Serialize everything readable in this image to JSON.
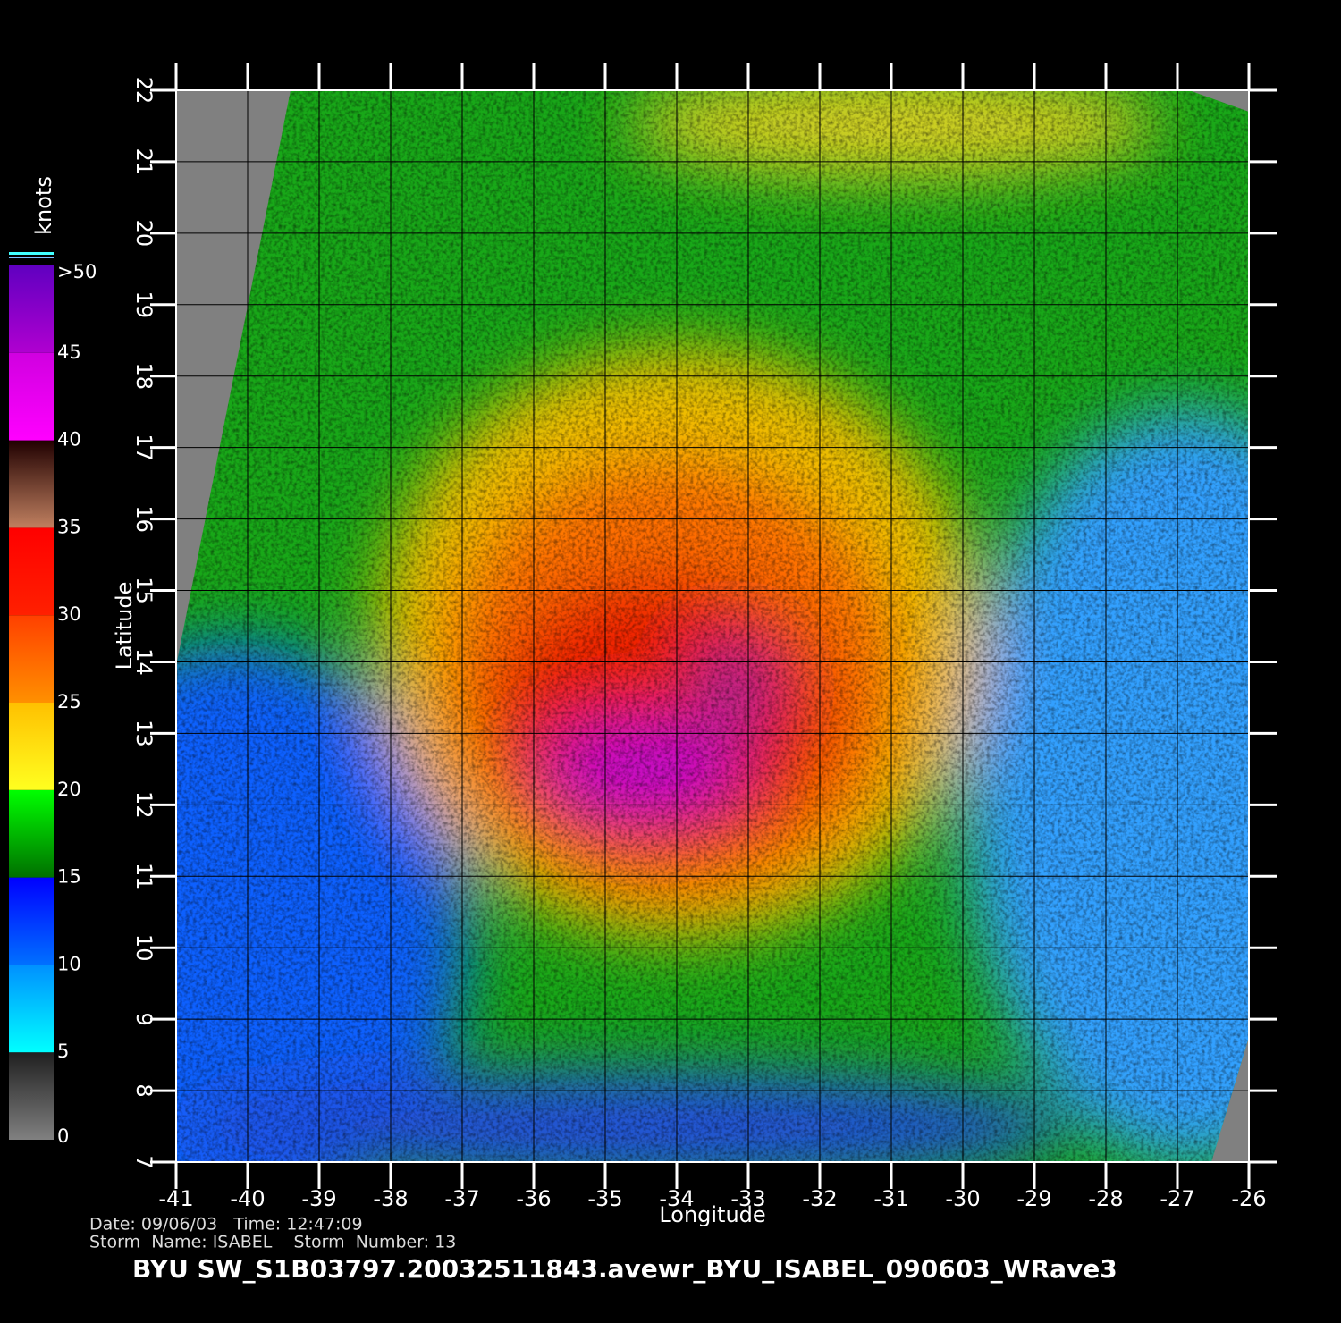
{
  "map": {
    "xlabel": "Longitude",
    "ylabel": "Latitude",
    "xlim": [
      -41,
      -26
    ],
    "ylim": [
      7,
      22
    ],
    "xticks": [
      -41,
      -40,
      -39,
      -38,
      -37,
      -36,
      -35,
      -34,
      -33,
      -32,
      -31,
      -30,
      -29,
      -28,
      -27,
      -26
    ],
    "yticks": [
      7,
      8,
      9,
      10,
      11,
      12,
      13,
      14,
      15,
      16,
      17,
      18,
      19,
      20,
      21,
      22
    ],
    "grid": true
  },
  "colorbar": {
    "title": "knots",
    "lim": [
      0,
      50
    ],
    "ticks": [
      0,
      5,
      10,
      15,
      20,
      25,
      30,
      35,
      40,
      45,
      {
        "value": 50,
        "label": ">50"
      }
    ],
    "segment_colors": [
      [
        "#808080",
        "#202020"
      ],
      [
        "#00ffff",
        "#0090ff"
      ],
      [
        "#0070ff",
        "#0000ff"
      ],
      [
        "#007000",
        "#00ff00"
      ],
      [
        "#ffff20",
        "#ffc000"
      ],
      [
        "#ff9000",
        "#ff4000"
      ],
      [
        "#ff2000",
        "#ff0000"
      ],
      [
        "#c08060",
        "#200000"
      ],
      [
        "#ff00ff",
        "#d000e0"
      ],
      [
        "#b000d0",
        "#6000c0"
      ]
    ]
  },
  "info": [
    "Date: 09/06/03   Time: 12:47:09",
    "Storm  Name: ISABEL    Storm  Number: 13"
  ],
  "footer": "BYU  SW_S1B03797.20032511843.avewr_BYU_ISABEL_090603_WRave3"
}
